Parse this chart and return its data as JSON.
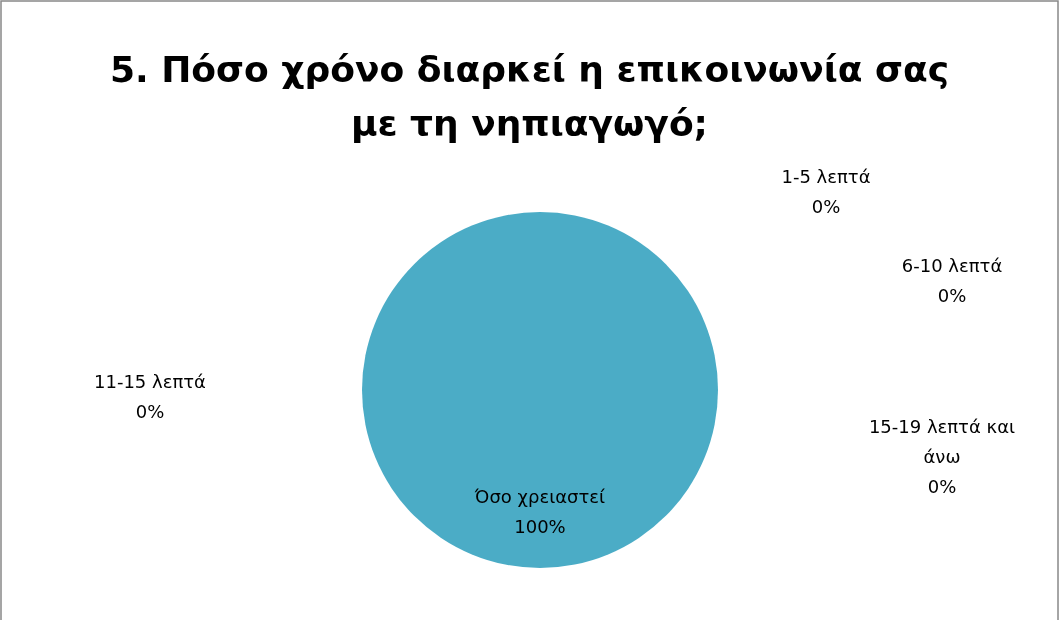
{
  "chart_data": {
    "type": "pie",
    "title": "5. Πόσο χρόνο διαρκεί η επικοινωνία σας με τη νηπιαγωγό;",
    "categories": [
      "1-5 λεπτά",
      "6-10 λεπτά",
      "11-15 λεπτά",
      "15-19 λεπτά και άνω",
      "Όσο χρειαστεί"
    ],
    "values": [
      0,
      0,
      0,
      0,
      100
    ],
    "colors": [
      "#4f81bd",
      "#c0504d",
      "#9bbb59",
      "#8064a2",
      "#4bacc6"
    ],
    "value_labels": [
      "0%",
      "0%",
      "0%",
      "0%",
      "100%"
    ]
  }
}
